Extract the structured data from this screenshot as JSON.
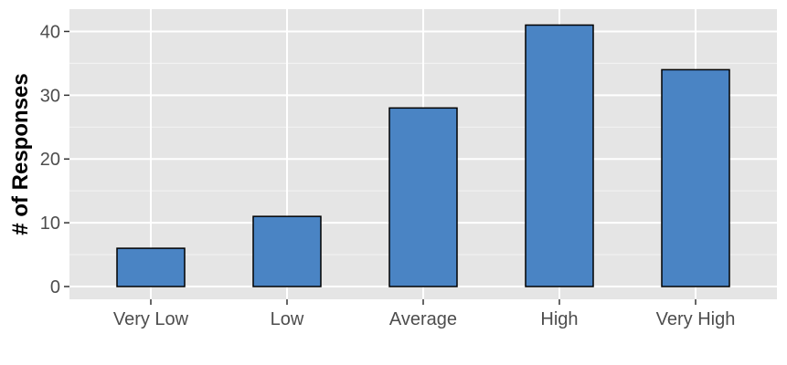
{
  "chart_data": {
    "type": "bar",
    "title": "",
    "xlabel": "",
    "ylabel": "# of Responses",
    "categories": [
      "Very Low",
      "Low",
      "Average",
      "High",
      "Very High"
    ],
    "values": [
      6,
      11,
      28,
      41,
      34
    ],
    "ylim": [
      -2,
      43.5
    ],
    "yticks": [
      0,
      10,
      20,
      30,
      40
    ],
    "ytick_labels": [
      "0",
      "10",
      "20",
      "30",
      "40"
    ],
    "grid": true,
    "legend": "none",
    "colors": {
      "bar_fill": "#4a84c4",
      "bar_stroke": "#000000",
      "panel_background": "#e5e5e5",
      "grid_major": "#ffffff",
      "grid_minor": "#f2f2f2",
      "tick_mark": "#333333",
      "tick_text": "#4d4d4d"
    }
  }
}
